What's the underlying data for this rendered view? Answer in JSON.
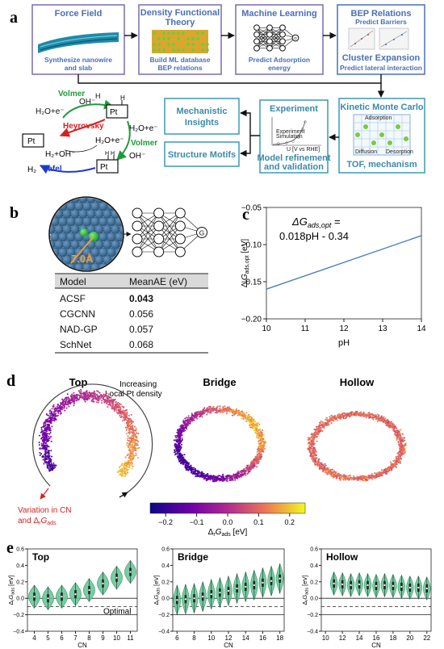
{
  "panel_labels": {
    "a": "a",
    "b": "b",
    "c": "c",
    "d": "d",
    "e": "e"
  },
  "panel_a": {
    "boxes": [
      {
        "title": "Force Field",
        "caption": "Synthesize nanowire\nand slab"
      },
      {
        "title": "Density Functional\nTheory",
        "caption": "Build ML database\nBEP relations"
      },
      {
        "title": "Machine Learning",
        "caption": "Predict Adsorption\nenergy"
      },
      {
        "title": "BEP Relations",
        "subtitle": "Predict Barriers",
        "title2": "Cluster Expansion",
        "caption": "Predict lateral interaction"
      }
    ],
    "kmc": {
      "title": "Kinetic Monte Carlo",
      "caption": "TOF, mechanism",
      "inner": [
        "Adsorption",
        "Diffusion",
        "Desorption"
      ]
    },
    "experiment": {
      "title": "Experiment",
      "caption": "Model refinement\nand validation",
      "legend": [
        "Experiment",
        "Simulation"
      ],
      "xlabel": "U [V vs RHE]"
    },
    "mechanistic": "Mechanistic\nInsights",
    "motifs": "Structure Motifs",
    "mechanism": {
      "volmer1": "Volmer",
      "heyrovsky": "Heyrovsky",
      "volmer2": "Volmer",
      "tafel": "Tafel",
      "h2o_e_1": "H₂O+e⁻",
      "oh_1": "OH⁻",
      "pt": "Pt",
      "pt_h": "Pt",
      "h_top": "H",
      "h2o_e_2": "H₂O+e⁻",
      "h2o_e_3": "H₂O+e⁻",
      "h2_oh": "H₂+OH⁻",
      "oh_2": "OH⁻",
      "h2": "H₂",
      "pt_hh": "Pt",
      "hh": "H H"
    }
  },
  "panel_b": {
    "distance": "7.0Å",
    "node_g": "G",
    "table": {
      "headers": [
        "Model",
        "MeanAE (eV)"
      ],
      "rows": [
        [
          "ACSF",
          "0.043"
        ],
        [
          "CGCNN",
          "0.056"
        ],
        [
          "NAD-GP",
          "0.057"
        ],
        [
          "SchNet",
          "0.068"
        ]
      ]
    }
  },
  "chart_data": [
    {
      "type": "line",
      "panel": "c",
      "annotation_l1": "ΔG",
      "annotation_l1_sub": "ads,opt",
      "annotation_l1_tail": " =",
      "annotation_l2": "0.018pH - 0.34",
      "ylabel": "Δ",
      "ylabel_sub1": "r",
      "ylabel_mid": "G",
      "ylabel_sub2": "ads,opt",
      "ylabel_tail": " [eV]",
      "xlabel": "pH",
      "x": [
        10,
        14
      ],
      "y": [
        -0.16,
        -0.088
      ],
      "xlim": [
        10,
        14
      ],
      "ylim": [
        -0.2,
        -0.05
      ],
      "xticks": [
        10,
        11,
        12,
        13,
        14
      ],
      "yticks": [
        -0.05,
        -0.1,
        -0.15,
        -0.2
      ],
      "ytick_labels": [
        "−0.05",
        "−0.10",
        "−0.15",
        "−0.20"
      ],
      "color": "#4a7fc1"
    },
    {
      "type": "scatter",
      "panel": "d",
      "titles": [
        "Top",
        "Bridge",
        "Hollow"
      ],
      "annotation_top": "Increasing\nLocal Pt density",
      "annotation_bottom": "Variation in CN",
      "annotation_bottom_l2": "and Δ",
      "annotation_bottom_sub1": "r",
      "annotation_bottom_mid": "G",
      "annotation_bottom_sub2": "ads",
      "colorbar": {
        "label": "Δ",
        "label_sub1": "r",
        "label_mid": "G",
        "label_sub2": "ads",
        "label_tail": " [eV]",
        "min": -0.25,
        "max": 0.25,
        "ticks": [
          -0.2,
          -0.1,
          0.0,
          0.1,
          0.2
        ],
        "tick_labels": [
          "−0.2",
          "−0.1",
          "0.0",
          "0.1",
          "0.2"
        ]
      }
    },
    {
      "type": "violin",
      "panel": "e",
      "ylabel": "Δ",
      "ylabel_sub1": "r",
      "ylabel_mid": "G",
      "ylabel_sub2": "ads",
      "ylabel_tail": " [eV]",
      "xlabel": "CN",
      "ylim": [
        -0.4,
        0.6
      ],
      "yticks": [
        -0.4,
        -0.2,
        0.0,
        0.2,
        0.4,
        0.6
      ],
      "ytick_labels": [
        "−0.4",
        "−0.2",
        "0.0",
        "0.2",
        "0.4",
        "0.6"
      ],
      "optimal_label": "Optimal",
      "subplots": [
        {
          "title": "Top",
          "cn": [
            4,
            5,
            6,
            7,
            8,
            9,
            10,
            11
          ],
          "medians": [
            0.02,
            0.0,
            0.02,
            0.05,
            0.1,
            0.18,
            0.25,
            0.32
          ],
          "xticks": [
            4,
            5,
            6,
            7,
            8,
            9,
            10,
            11
          ]
        },
        {
          "title": "Bridge",
          "cn": [
            6,
            7,
            8,
            9,
            10,
            11,
            12,
            13,
            14,
            15,
            16,
            17,
            18
          ],
          "medians": [
            -0.02,
            -0.01,
            0.0,
            0.02,
            0.05,
            0.07,
            0.09,
            0.12,
            0.14,
            0.16,
            0.19,
            0.21,
            0.24
          ],
          "xticks": [
            6,
            8,
            10,
            12,
            14,
            16,
            18
          ]
        },
        {
          "title": "Hollow",
          "cn": [
            11,
            12,
            13,
            14,
            15,
            16,
            17,
            18,
            19,
            20,
            21,
            22
          ],
          "medians": [
            0.18,
            0.17,
            0.16,
            0.17,
            0.16,
            0.15,
            0.16,
            0.15,
            0.14,
            0.13,
            0.13,
            0.12
          ],
          "xticks": [
            10,
            12,
            14,
            16,
            18,
            20,
            22
          ]
        }
      ]
    }
  ],
  "colors": {
    "box_border": "#7a6bb0",
    "box_blue": "#4a6fb5",
    "teal": "#3a9ab5",
    "green_violin": "#6cc79a",
    "volmer": "#1f9a3a",
    "heyrovsky": "#d62020",
    "tafel": "#1f3ac8",
    "ball": "#3d6e98",
    "ball_green": "#2fbf3a"
  }
}
